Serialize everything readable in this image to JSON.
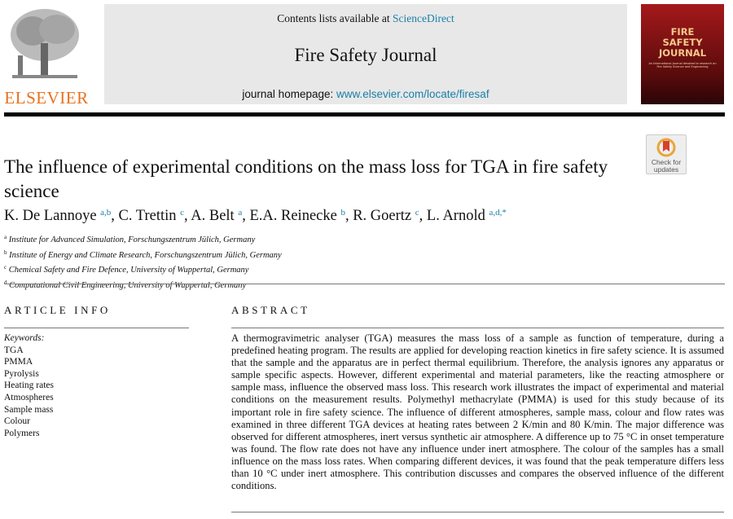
{
  "header": {
    "contents_prefix": "Contents lists available at ",
    "contents_link": "ScienceDirect",
    "journal": "Fire Safety Journal",
    "homepage_prefix": "journal homepage: ",
    "homepage_link": "www.elsevier.com/locate/firesaf"
  },
  "logo": {
    "publisher": "ELSEVIER"
  },
  "cover": {
    "title_lines": [
      "FIRE",
      "SAFETY",
      "JOURNAL"
    ],
    "subtitle": "An International Journal devoted to research on Fire Safety Science and Engineering"
  },
  "check_updates": {
    "line1": "Check for",
    "line2": "updates"
  },
  "article": {
    "title": "The influence of experimental conditions on the mass loss for TGA in fire safety science",
    "authors": [
      {
        "name": "K. De Lannoye",
        "aff": "a,b"
      },
      {
        "name": "C. Trettin",
        "aff": "c"
      },
      {
        "name": "A. Belt",
        "aff": "a"
      },
      {
        "name": "E.A. Reinecke",
        "aff": "b"
      },
      {
        "name": "R. Goertz",
        "aff": "c"
      },
      {
        "name": "L. Arnold",
        "aff": "a,d,*"
      }
    ],
    "affiliations": [
      {
        "key": "a",
        "text": "Institute for Advanced Simulation, Forschungszentrum Jülich, Germany"
      },
      {
        "key": "b",
        "text": "Institute of Energy and Climate Research, Forschungszentrum Jülich, Germany"
      },
      {
        "key": "c",
        "text": "Chemical Safety and Fire Defence, University of Wuppertal, Germany"
      },
      {
        "key": "d",
        "text": "Computational Civil Engineering, University of Wuppertal, Germany"
      }
    ]
  },
  "article_info": {
    "heading": "ARTICLE INFO",
    "keywords_label": "Keywords:",
    "keywords": [
      "TGA",
      "PMMA",
      "Pyrolysis",
      "Heating rates",
      "Atmospheres",
      "Sample mass",
      "Colour",
      "Polymers"
    ]
  },
  "abstract": {
    "heading": "ABSTRACT",
    "text": "A thermogravimetric analyser (TGA) measures the mass loss of a sample as function of temperature, during a predefined heating program. The results are applied for developing reaction kinetics in fire safety science. It is assumed that the sample and the apparatus are in perfect thermal equilibrium. Therefore, the analysis ignores any apparatus or sample specific aspects. However, different experimental and material parameters, like the reacting atmosphere or sample mass, influence the observed mass loss. This research work illustrates the impact of experimental and material conditions on the measurement results. Polymethyl methacrylate (PMMA) is used for this study because of its important role in fire safety science. The influence of different atmospheres, sample mass, colour and flow rates was examined in three different TGA devices at heating rates between 2 K/min and 80 K/min. The major difference was observed for different atmospheres, inert versus synthetic air atmosphere. A difference up to 75 °C in onset temperature was found. The flow rate does not have any influence under inert atmosphere. The colour of the samples has a small influence on the mass loss rates. When comparing different devices, it was found that the peak temperature differs less than 10 °C under inert atmosphere. This contribution discusses and compares the observed influence of the different conditions."
  }
}
